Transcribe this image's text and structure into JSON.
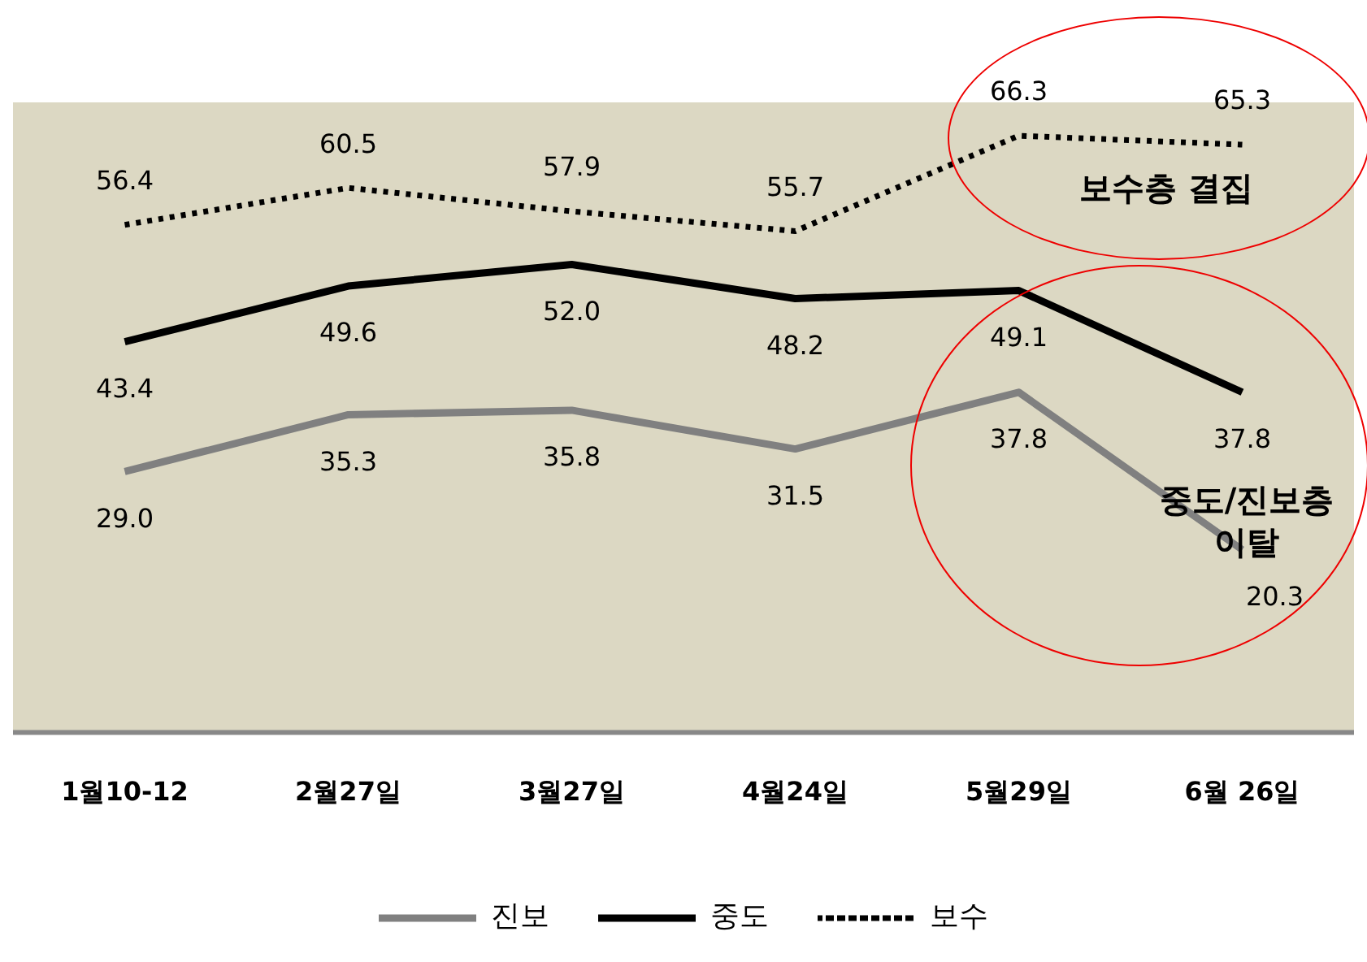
{
  "chart_data": {
    "type": "line",
    "categories": [
      "1월10-12",
      "2월27일",
      "3월27일",
      "4월24일",
      "5월29일",
      "6월 26일"
    ],
    "series": [
      {
        "name": "진보",
        "color": "#808080",
        "values": [
          29.0,
          35.3,
          35.8,
          31.5,
          37.8,
          20.3
        ],
        "value_labels": [
          "29.0",
          "35.3",
          "35.8",
          "31.5",
          "37.8",
          "20.3"
        ],
        "line_style": "solid"
      },
      {
        "name": "중도",
        "color": "#000000",
        "values": [
          43.4,
          49.6,
          52.0,
          48.2,
          49.1,
          37.8
        ],
        "value_labels": [
          "43.4",
          "49.6",
          "52.0",
          "48.2",
          "49.1",
          "37.8"
        ],
        "line_style": "solid"
      },
      {
        "name": "보수",
        "color": "#000000",
        "values": [
          56.4,
          60.5,
          57.9,
          55.7,
          66.3,
          65.3
        ],
        "value_labels": [
          "56.4",
          "60.5",
          "57.9",
          "55.7",
          "66.3",
          "65.3"
        ],
        "line_style": "dotted"
      }
    ],
    "legend": "bottom",
    "grid": false,
    "marker": "none",
    "annotations": [
      "보수층 결집",
      "중도/진보층 이탈"
    ]
  }
}
